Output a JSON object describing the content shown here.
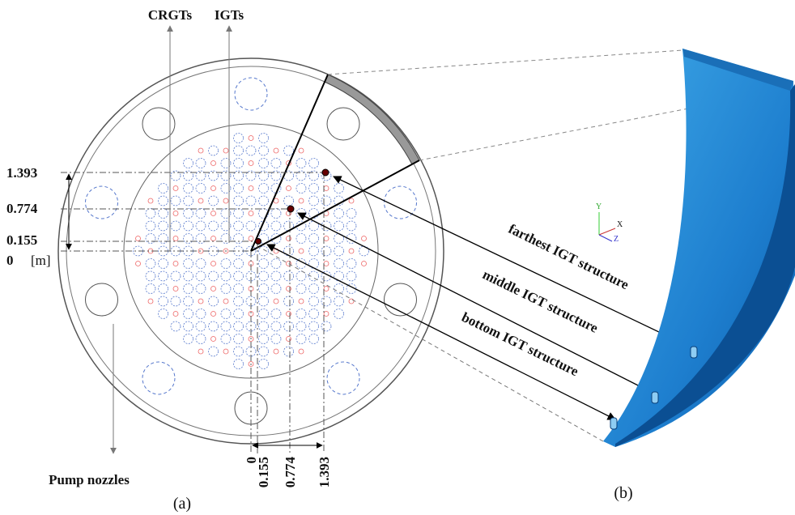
{
  "labels": {
    "crgts": "CRGTs",
    "igts": "IGTs",
    "pump_nozzles": "Pump nozzles",
    "panel_a": "(a)",
    "panel_b": "(b)",
    "unit": "[m]"
  },
  "left_ticks": [
    "1.393",
    "0.774",
    "0.155",
    "0"
  ],
  "bottom_ticks": [
    "0",
    "0.155",
    "0.774",
    "1.393"
  ],
  "structures": [
    "farthest IGT structure",
    "middle IGT structure",
    "bottom IGT structure"
  ],
  "triad": {
    "y": "Y",
    "x": "X",
    "z": "Z"
  }
}
